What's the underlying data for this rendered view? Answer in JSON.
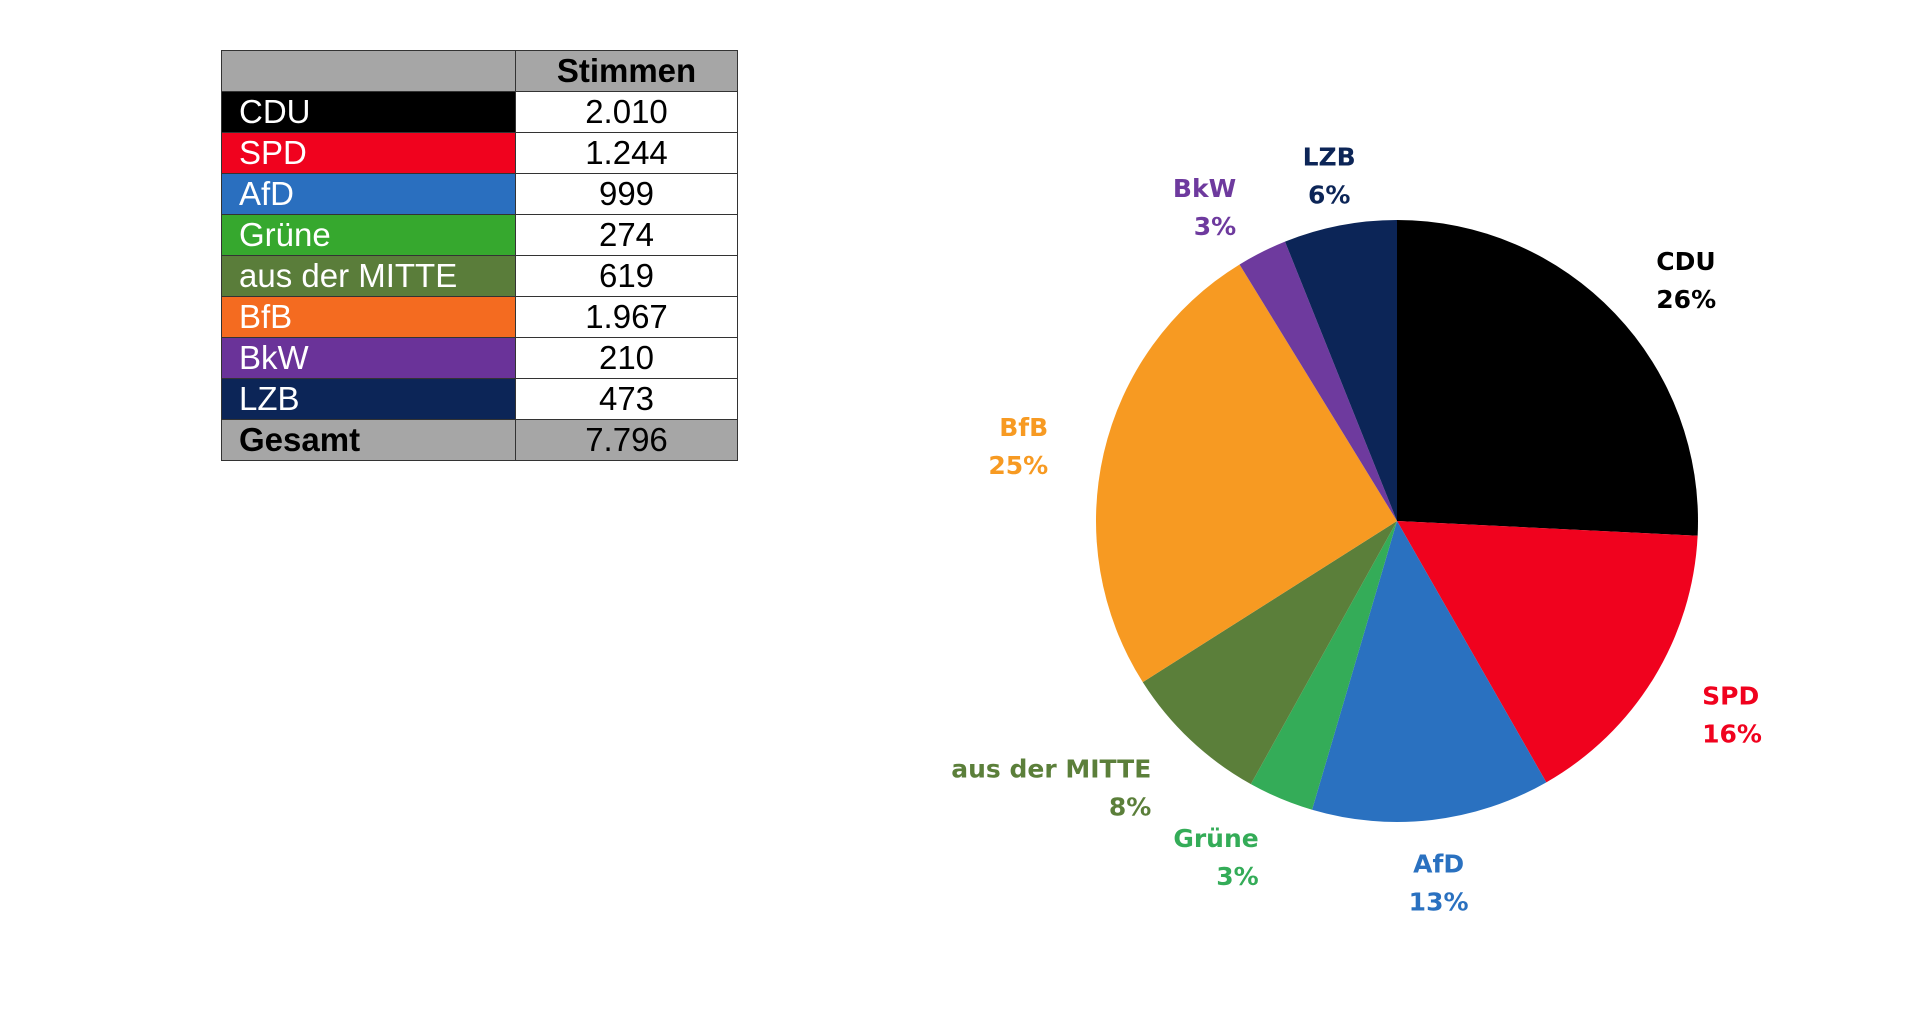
{
  "table": {
    "header_votes": "Stimmen",
    "rows": [
      {
        "party": "CDU",
        "votes": "2.010",
        "color": "#000000"
      },
      {
        "party": "SPD",
        "votes": "1.244",
        "color": "#f0021e"
      },
      {
        "party": "AfD",
        "votes": "999",
        "color": "#2a6fbf"
      },
      {
        "party": "Grüne",
        "votes": "274",
        "color": "#36a82e"
      },
      {
        "party": "aus der MITTE",
        "votes": "619",
        "color": "#5a7d3a"
      },
      {
        "party": "BfB",
        "votes": "1.967",
        "color": "#f46b20"
      },
      {
        "party": "BkW",
        "votes": "210",
        "color": "#6a3399"
      },
      {
        "party": "LZB",
        "votes": "473",
        "color": "#0c2557"
      }
    ],
    "total_label": "Gesamt",
    "total_value": "7.796"
  },
  "chart_data": {
    "type": "pie",
    "categories": [
      "CDU",
      "SPD",
      "AfD",
      "Grüne",
      "aus der MITTE",
      "BfB",
      "BkW",
      "LZB"
    ],
    "values": [
      2010,
      1244,
      999,
      274,
      619,
      1967,
      210,
      473
    ],
    "percent_labels": [
      "26%",
      "16%",
      "13%",
      "3%",
      "8%",
      "25%",
      "3%",
      "6%"
    ],
    "colors": [
      "#000000",
      "#f0021e",
      "#2a71c0",
      "#34ac58",
      "#5b7f3a",
      "#f79a22",
      "#6e3a9e",
      "#0c2557"
    ],
    "label_colors": [
      "#000000",
      "#f0021e",
      "#2a71c0",
      "#34ac58",
      "#5b7f3a",
      "#f79a22",
      "#6e3a9e",
      "#0c2557"
    ],
    "start": "12 o'clock",
    "direction": "clockwise"
  }
}
